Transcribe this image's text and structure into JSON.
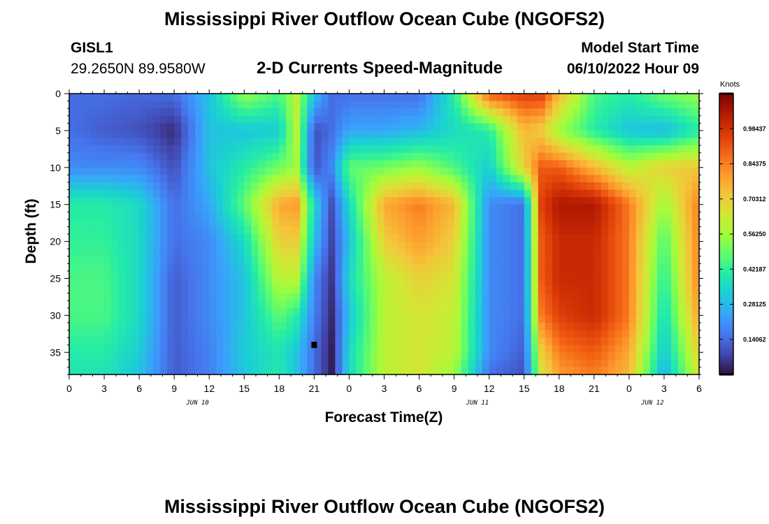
{
  "header": {
    "title": "Mississippi River Outflow Ocean Cube (NGOFS2)",
    "station_id": "GISL1",
    "station_coords": "29.2650N  89.9580W",
    "subtitle": "2-D Currents Speed-Magnitude",
    "model_start_label": "Model Start Time",
    "model_start_value": "06/10/2022 Hour 09"
  },
  "footer": {
    "title": "Mississippi River Outflow Ocean Cube (NGOFS2)"
  },
  "chart_data": {
    "type": "heatmap",
    "title": "2-D Currents Speed-Magnitude",
    "xlabel": "Forecast Time(Z)",
    "ylabel": "Depth (ft)",
    "x_range_hours": [
      0,
      54
    ],
    "x_tick_labels": [
      "0",
      "3",
      "6",
      "9",
      "12",
      "15",
      "18",
      "21",
      "0",
      "3",
      "6",
      "9",
      "12",
      "15",
      "18",
      "21",
      "0",
      "3",
      "6"
    ],
    "date_labels": [
      {
        "label": "JUN 10",
        "hour": 11
      },
      {
        "label": "JUN 11",
        "hour": 35
      },
      {
        "label": "JUN 12",
        "hour": 50
      }
    ],
    "y_range_ft": [
      0,
      38
    ],
    "y_tick_values": [
      0,
      5,
      10,
      15,
      20,
      25,
      30,
      35
    ],
    "y_inverted": true,
    "colorbar": {
      "unit": "Knots",
      "range": [
        0,
        1.125
      ],
      "tick_labels": [
        "0.98437",
        "0.84375",
        "0.70312",
        "0.56250",
        "0.42187",
        "0.28125",
        "0.14062"
      ],
      "tick_values": [
        0.98437,
        0.84375,
        0.70312,
        0.5625,
        0.42187,
        0.28125,
        0.14062
      ]
    },
    "color_scale": [
      "#30123b",
      "#4145ab",
      "#4675ed",
      "#39a2fc",
      "#1bcfd4",
      "#24eca6",
      "#61fc6c",
      "#a4fc3b",
      "#d1e834",
      "#f3c63a",
      "#fe9b2d",
      "#f36315",
      "#d93806",
      "#b11901",
      "#7a0403"
    ],
    "speed_grid_knots": {
      "hours": [
        0,
        3,
        6,
        9,
        12,
        15,
        18,
        19.5,
        21,
        22.5,
        24,
        27,
        30,
        33,
        36,
        39,
        40.5,
        42,
        45,
        48,
        51,
        54
      ],
      "depths_ft": [
        0,
        5,
        10,
        15,
        20,
        25,
        30,
        35,
        38
      ],
      "values": [
        [
          0.15,
          0.15,
          0.14,
          0.15,
          0.3,
          0.55,
          0.45,
          0.6,
          0.3,
          0.15,
          0.15,
          0.15,
          0.15,
          0.4,
          0.9,
          0.95,
          0.95,
          0.75,
          0.45,
          0.4,
          0.5,
          0.55
        ],
        [
          0.15,
          0.12,
          0.1,
          0.04,
          0.3,
          0.3,
          0.32,
          0.6,
          0.1,
          0.15,
          0.25,
          0.25,
          0.28,
          0.35,
          0.4,
          0.75,
          0.7,
          0.55,
          0.4,
          0.3,
          0.28,
          0.4
        ],
        [
          0.2,
          0.2,
          0.2,
          0.1,
          0.3,
          0.4,
          0.5,
          0.55,
          0.1,
          0.2,
          0.48,
          0.5,
          0.55,
          0.45,
          0.32,
          0.7,
          0.9,
          0.9,
          0.75,
          0.6,
          0.7,
          0.72
        ],
        [
          0.4,
          0.4,
          0.35,
          0.15,
          0.25,
          0.48,
          0.78,
          0.8,
          0.35,
          0.1,
          0.35,
          0.78,
          0.85,
          0.75,
          0.2,
          0.15,
          0.95,
          1.05,
          1.05,
          0.85,
          0.55,
          0.85
        ],
        [
          0.42,
          0.42,
          0.35,
          0.15,
          0.2,
          0.35,
          0.7,
          0.7,
          0.3,
          0.08,
          0.3,
          0.7,
          0.8,
          0.7,
          0.2,
          0.15,
          0.9,
          1.0,
          1.0,
          0.85,
          0.45,
          0.85
        ],
        [
          0.45,
          0.45,
          0.35,
          0.12,
          0.2,
          0.3,
          0.6,
          0.6,
          0.2,
          0.06,
          0.35,
          0.6,
          0.7,
          0.65,
          0.2,
          0.15,
          0.9,
          1.0,
          1.0,
          0.85,
          0.4,
          0.85
        ],
        [
          0.45,
          0.45,
          0.35,
          0.12,
          0.2,
          0.3,
          0.48,
          0.4,
          0.18,
          0.04,
          0.3,
          0.6,
          0.65,
          0.62,
          0.2,
          0.15,
          0.85,
          0.95,
          1.0,
          0.85,
          0.35,
          0.8
        ],
        [
          0.4,
          0.4,
          0.32,
          0.12,
          0.18,
          0.32,
          0.38,
          0.3,
          0.15,
          0.02,
          0.35,
          0.6,
          0.65,
          0.6,
          0.2,
          0.12,
          0.7,
          0.85,
          0.9,
          0.78,
          0.3,
          0.7
        ],
        [
          0.38,
          0.38,
          0.3,
          0.12,
          0.18,
          0.3,
          0.4,
          0.3,
          0.15,
          0.02,
          0.35,
          0.6,
          0.65,
          0.55,
          0.15,
          0.1,
          0.65,
          0.8,
          0.85,
          0.75,
          0.25,
          0.65
        ]
      ]
    },
    "marker": {
      "hour": 21,
      "depth_ft": 34
    }
  }
}
